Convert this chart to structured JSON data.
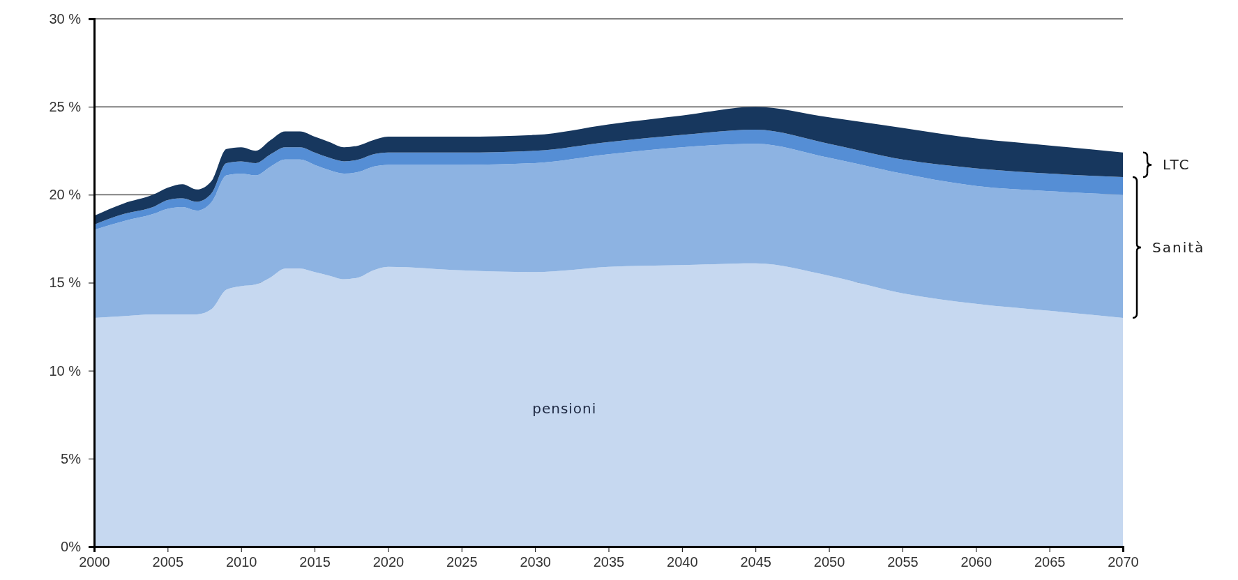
{
  "chart_data": {
    "type": "area",
    "stacked": true,
    "x": [
      2000,
      2002,
      2004,
      2005,
      2006,
      2007,
      2008,
      2009,
      2010,
      2011,
      2012,
      2013,
      2014,
      2015,
      2016,
      2017,
      2018,
      2019,
      2020,
      2025,
      2030,
      2035,
      2040,
      2045,
      2050,
      2055,
      2060,
      2065,
      2070
    ],
    "series": [
      {
        "name": "pensioni",
        "color": "#c6d8f0",
        "values": [
          13.0,
          13.1,
          13.2,
          13.2,
          13.2,
          13.2,
          13.5,
          14.6,
          14.8,
          14.9,
          15.3,
          15.8,
          15.8,
          15.6,
          15.4,
          15.2,
          15.3,
          15.7,
          15.9,
          15.7,
          15.6,
          15.9,
          16.0,
          16.1,
          15.4,
          14.4,
          13.8,
          13.4,
          13.0
        ]
      },
      {
        "color": "#8db3e2",
        "values": [
          5.0,
          5.4,
          5.7,
          6.0,
          6.1,
          5.9,
          6.1,
          6.5,
          6.4,
          6.2,
          6.3,
          6.2,
          6.2,
          6.1,
          6.0,
          6.0,
          6.0,
          5.9,
          5.8,
          6.0,
          6.2,
          6.4,
          6.7,
          6.8,
          6.7,
          6.8,
          6.7,
          6.8,
          7.0
        ]
      },
      {
        "color": "#558ed5",
        "values": [
          0.3,
          0.4,
          0.4,
          0.5,
          0.5,
          0.5,
          0.5,
          0.7,
          0.7,
          0.7,
          0.7,
          0.7,
          0.7,
          0.7,
          0.7,
          0.7,
          0.7,
          0.7,
          0.7,
          0.7,
          0.7,
          0.7,
          0.7,
          0.8,
          0.8,
          0.8,
          1.0,
          1.0,
          1.0
        ]
      },
      {
        "color": "#17375e",
        "values": [
          0.5,
          0.6,
          0.7,
          0.7,
          0.8,
          0.7,
          0.7,
          0.8,
          0.8,
          0.7,
          0.8,
          0.9,
          0.9,
          0.9,
          0.9,
          0.8,
          0.8,
          0.8,
          0.9,
          0.9,
          0.9,
          1.0,
          1.1,
          1.3,
          1.5,
          1.8,
          1.7,
          1.6,
          1.4
        ]
      }
    ],
    "annotations": [
      "LTC",
      "Sanità"
    ],
    "xlim": [
      2000,
      2070
    ],
    "xticks": [
      2000,
      2005,
      2010,
      2015,
      2020,
      2025,
      2030,
      2035,
      2040,
      2045,
      2050,
      2055,
      2060,
      2065,
      2070
    ],
    "ylim": [
      0,
      30
    ],
    "yticks": [
      {
        "value": 0,
        "label": "0%"
      },
      {
        "value": 5,
        "label": "5%"
      },
      {
        "value": 10,
        "label": "10 %"
      },
      {
        "value": 15,
        "label": "15 %"
      },
      {
        "value": 20,
        "label": "20 %"
      },
      {
        "value": 25,
        "label": "25 %"
      },
      {
        "value": 30,
        "label": "30 %"
      }
    ],
    "grid": "y"
  }
}
